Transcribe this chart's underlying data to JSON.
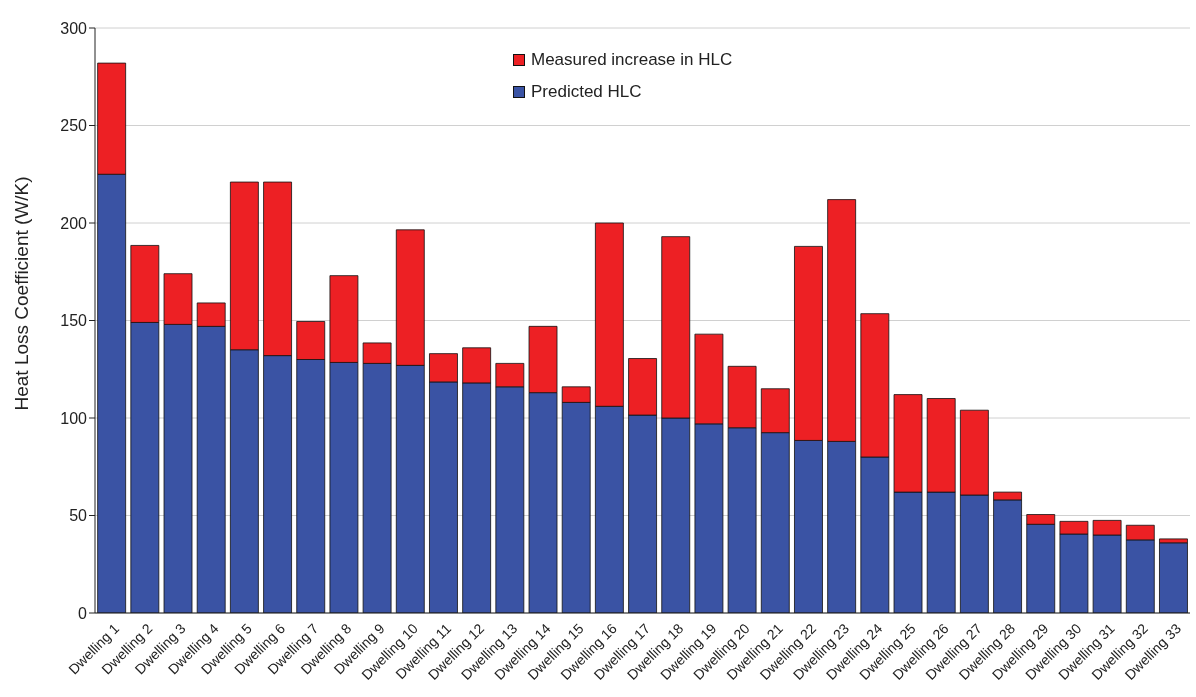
{
  "chart_data": {
    "type": "bar",
    "stacked": true,
    "ylabel": "Heat Loss Coefficient (W/K)",
    "categories": [
      "Dwelling 1",
      "Dwelling 2",
      "Dwelling 3",
      "Dwelling 4",
      "Dwelling 5",
      "Dwelling 6",
      "Dwelling 7",
      "Dwelling 8",
      "Dwelling 9",
      "Dwelling 10",
      "Dwelling 11",
      "Dwelling 12",
      "Dwelling 13",
      "Dwelling 14",
      "Dwelling 15",
      "Dwelling 16",
      "Dwelling 17",
      "Dwelling 18",
      "Dwelling 19",
      "Dwelling 20",
      "Dwelling 21",
      "Dwelling 22",
      "Dwelling 23",
      "Dwelling 24",
      "Dwelling 25",
      "Dwelling 26",
      "Dwelling 27",
      "Dwelling 28",
      "Dwelling 29",
      "Dwelling 30",
      "Dwelling 31",
      "Dwelling 32",
      "Dwelling 33"
    ],
    "series": [
      {
        "name": "Predicted HLC",
        "color": "#3a53a4",
        "values": [
          225,
          149,
          148,
          147,
          135,
          132,
          130,
          128.5,
          128,
          127,
          118.5,
          118,
          116,
          113,
          108,
          106,
          101.5,
          100,
          97,
          95,
          92.5,
          88.5,
          88,
          80,
          62,
          62,
          60.5,
          58,
          45.5,
          40.5,
          40,
          37.5,
          36
        ]
      },
      {
        "name": "Measured increase in HLC",
        "color": "#ed2024",
        "values": [
          57,
          39.5,
          26,
          12,
          86,
          89,
          19.5,
          44.5,
          10.5,
          69.5,
          14.5,
          18,
          12,
          34,
          8,
          94,
          29,
          93,
          46,
          31.5,
          22.5,
          99.5,
          124,
          73.5,
          50,
          48,
          43.5,
          4,
          5,
          6.5,
          7.5,
          7.5,
          2
        ]
      }
    ],
    "ylim": [
      0,
      300
    ],
    "yticks": [
      0,
      50,
      100,
      150,
      200,
      250,
      300
    ],
    "grid": "y",
    "legend": "top"
  }
}
